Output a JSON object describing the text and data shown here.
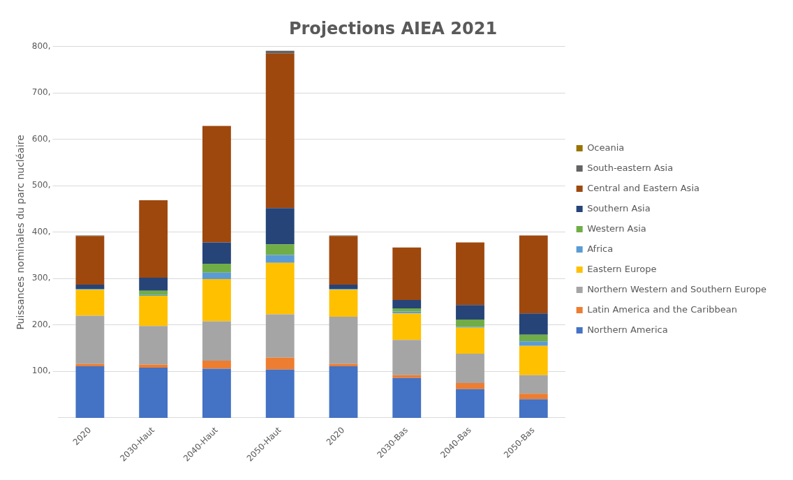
{
  "chart_data": {
    "type": "bar",
    "title": "Projections AIEA 2021",
    "ylabel": "Puissances nominales du parc nucléaire",
    "categories": [
      "2020",
      "2030-Haut",
      "2040-Haut",
      "2050-Haut",
      "2020",
      "2030-Bas",
      "2040-Bas",
      "2050-Bas"
    ],
    "stacked": true,
    "ylim": [
      0,
      800
    ],
    "yticks": [
      {
        "value": 100,
        "label": "100,"
      },
      {
        "value": 200,
        "label": "200,"
      },
      {
        "value": 300,
        "label": "300,"
      },
      {
        "value": 400,
        "label": "400,"
      },
      {
        "value": 500,
        "label": "500,"
      },
      {
        "value": 600,
        "label": "600,"
      },
      {
        "value": 700,
        "label": "700,"
      },
      {
        "value": 800,
        "label": "800,"
      }
    ],
    "grid": "y",
    "legend": "right",
    "series": [
      {
        "name": "Northern America",
        "color": "#4472c4",
        "values": [
          111,
          108,
          106,
          104,
          111,
          86,
          62,
          40
        ]
      },
      {
        "name": "Latin America and the Caribbean",
        "color": "#ed7d31",
        "values": [
          5,
          7,
          17,
          26,
          5,
          6,
          13,
          12
        ]
      },
      {
        "name": "Northern Western and Southern Europe",
        "color": "#a5a5a5",
        "values": [
          104,
          83,
          85,
          93,
          102,
          76,
          63,
          40
        ]
      },
      {
        "name": "Eastern Europe",
        "color": "#ffc000",
        "values": [
          56,
          65,
          91,
          111,
          58,
          57,
          56,
          63
        ]
      },
      {
        "name": "Africa",
        "color": "#5b9bd5",
        "values": [
          2,
          2,
          14,
          17,
          2,
          4,
          2,
          10
        ]
      },
      {
        "name": "Western Asia",
        "color": "#70ad47",
        "values": [
          0,
          9,
          19,
          23,
          0,
          7,
          16,
          14
        ]
      },
      {
        "name": "Southern Asia",
        "color": "#264478",
        "values": [
          9,
          28,
          46,
          78,
          9,
          18,
          31,
          46
        ]
      },
      {
        "name": "Central and Eastern Asia",
        "color": "#9e480e",
        "values": [
          105,
          167,
          251,
          333,
          105,
          113,
          135,
          168
        ]
      },
      {
        "name": "South-eastern Asia",
        "color": "#636363",
        "values": [
          1,
          0,
          0,
          6,
          1,
          0,
          0,
          0
        ]
      },
      {
        "name": "Oceania",
        "color": "#997300",
        "values": [
          0,
          0,
          0,
          0,
          0,
          0,
          0,
          0
        ]
      }
    ]
  }
}
